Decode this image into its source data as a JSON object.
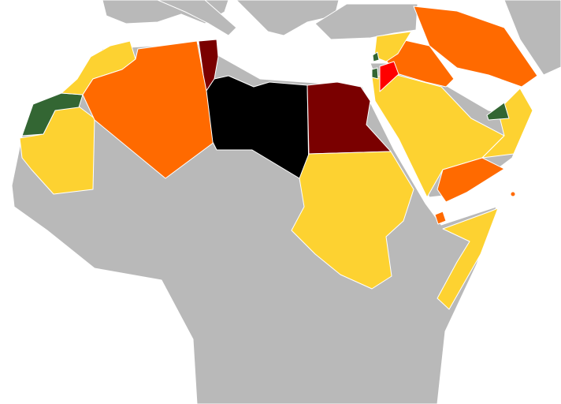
{
  "colors": {
    "sea": "#ffffff",
    "other_land": "#b9b9b9",
    "yellow": "#fdd231",
    "orange": "#ff6a00",
    "dark_red": "#7a0000",
    "black": "#000000",
    "green": "#336633",
    "red": "#ff0000",
    "border": "#ffffff"
  },
  "regions": [
    {
      "id": "morocco",
      "color_key": "yellow"
    },
    {
      "id": "western-sahara",
      "color_key": "green"
    },
    {
      "id": "mauritania",
      "color_key": "yellow"
    },
    {
      "id": "algeria",
      "color_key": "orange"
    },
    {
      "id": "tunisia",
      "color_key": "dark_red"
    },
    {
      "id": "libya",
      "color_key": "black"
    },
    {
      "id": "egypt",
      "color_key": "dark_red"
    },
    {
      "id": "sudan",
      "color_key": "yellow"
    },
    {
      "id": "saudi-arabia",
      "color_key": "yellow"
    },
    {
      "id": "oman",
      "color_key": "yellow"
    },
    {
      "id": "uae",
      "color_key": "green"
    },
    {
      "id": "yemen",
      "color_key": "orange"
    },
    {
      "id": "iraq",
      "color_key": "orange"
    },
    {
      "id": "iran",
      "color_key": "orange"
    },
    {
      "id": "syria",
      "color_key": "yellow"
    },
    {
      "id": "jordan",
      "color_key": "red"
    },
    {
      "id": "lebanon",
      "color_key": "green"
    },
    {
      "id": "palestine",
      "color_key": "green"
    },
    {
      "id": "somalia",
      "color_key": "yellow"
    },
    {
      "id": "djibouti",
      "color_key": "orange"
    },
    {
      "id": "comoros",
      "color_key": "orange"
    }
  ]
}
